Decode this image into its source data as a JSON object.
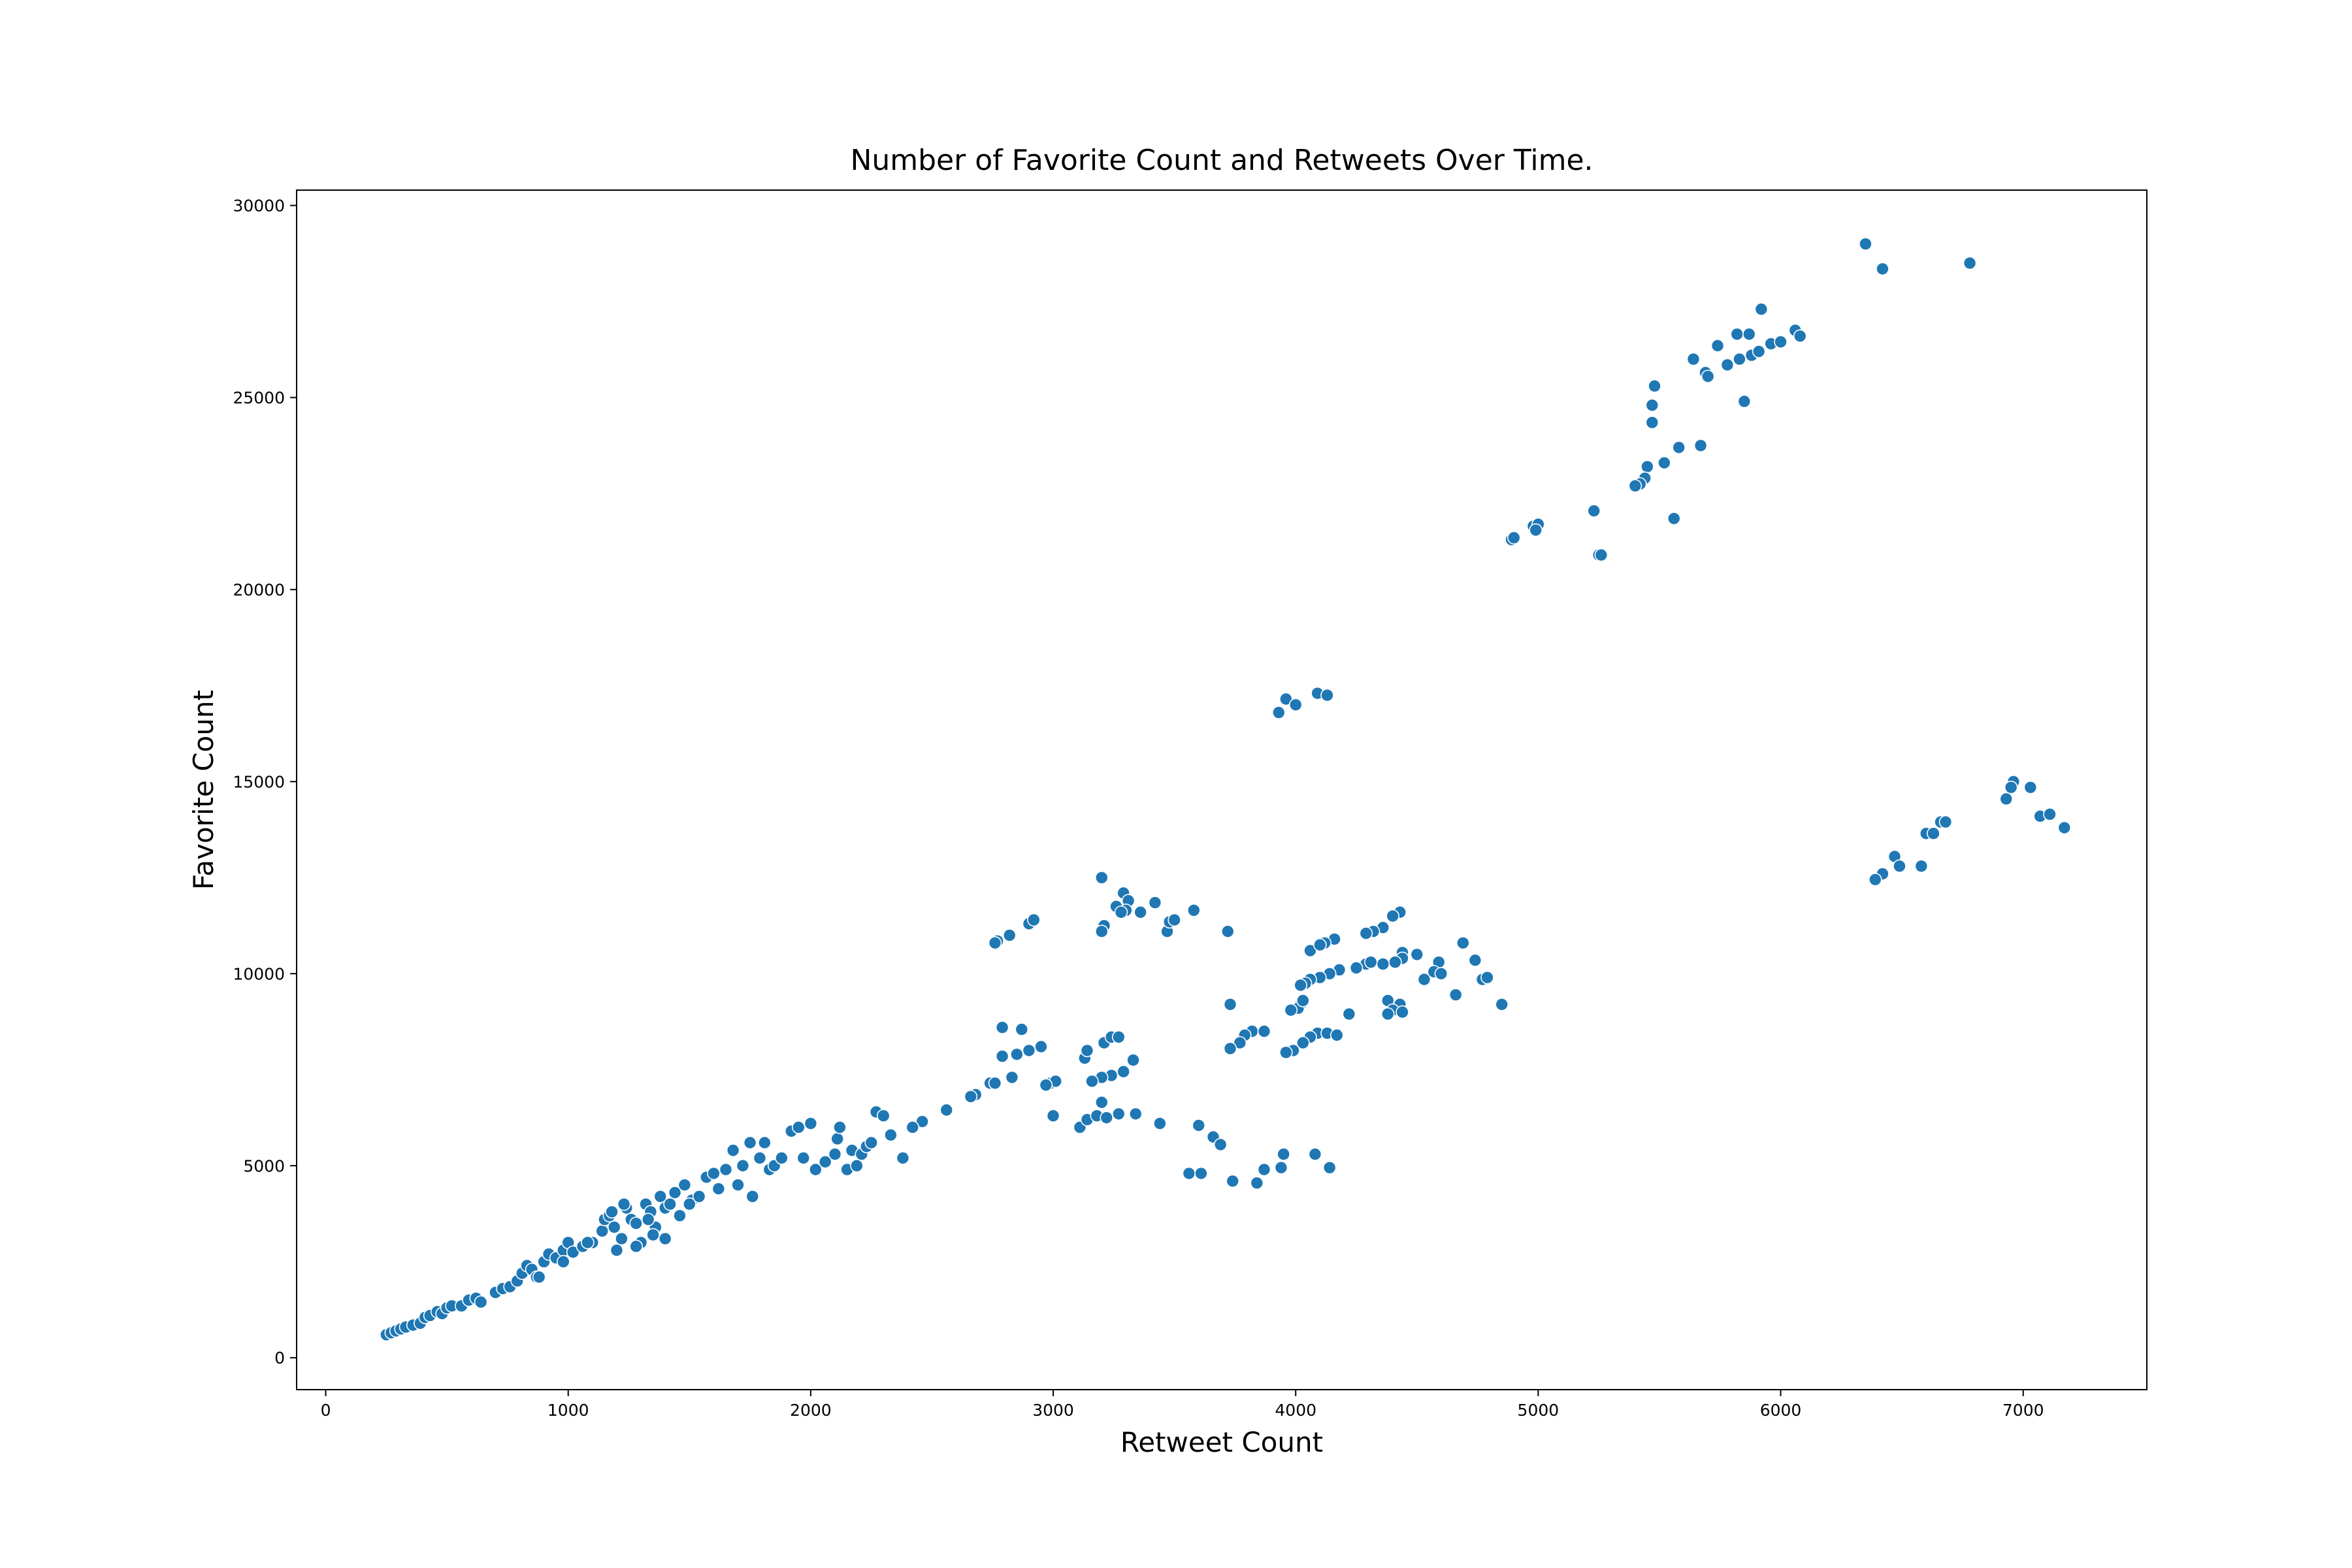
{
  "chart_data": {
    "type": "scatter",
    "title": "Number of Favorite Count and Retweets Over Time.",
    "xlabel": "Retweet Count",
    "ylabel": "Favorite Count",
    "color": "#1f77b4",
    "xlim": [
      -120,
      7510
    ],
    "ylim": [
      -830,
      30400
    ],
    "xticks": [
      0,
      1000,
      2000,
      3000,
      4000,
      5000,
      6000,
      7000
    ],
    "yticks": [
      0,
      5000,
      10000,
      15000,
      20000,
      25000,
      30000
    ],
    "x": [
      6350,
      6420,
      6780,
      5920,
      5820,
      5870,
      5960,
      6000,
      6060,
      6080,
      5640,
      5740,
      5690,
      5700,
      5780,
      5830,
      5880,
      5910,
      5480,
      5470,
      5470,
      5850,
      5580,
      5670,
      5520,
      5450,
      5440,
      5420,
      5400,
      5560,
      5230,
      5250,
      5260,
      4890,
      4900,
      4980,
      5000,
      4990,
      3930,
      3960,
      4000,
      4090,
      4130,
      6960,
      6950,
      7030,
      6930,
      7070,
      7110,
      7170,
      6660,
      6680,
      6600,
      6630,
      6470,
      6490,
      6420,
      6390,
      6580,
      3200,
      3290,
      3310,
      3260,
      3300,
      3280,
      3210,
      3200,
      3360,
      3420,
      3470,
      3480,
      3500,
      3580,
      3720,
      2900,
      2920,
      2820,
      2770,
      2760,
      4430,
      4400,
      4360,
      4320,
      4290,
      4160,
      4120,
      4060,
      4100,
      4690,
      4740,
      4590,
      4500,
      4440,
      4440,
      4410,
      4360,
      4290,
      4310,
      4250,
      4180,
      4140,
      4100,
      4060,
      4040,
      4020,
      4570,
      4600,
      4530,
      4770,
      4790,
      4660,
      4850,
      4020,
      4010,
      3980,
      4030,
      4380,
      4430,
      4400,
      4380,
      4440,
      4220,
      3730,
      3820,
      3790,
      3870,
      3770,
      3730,
      4090,
      4130,
      4170,
      4060,
      4030,
      3990,
      3960,
      2790,
      2870,
      2790,
      2830,
      2850,
      2900,
      2950,
      3130,
      3140,
      3210,
      3240,
      3270,
      3290,
      3330,
      3240,
      3200,
      3160,
      2990,
      3010,
      2970,
      2740,
      2760,
      2680,
      2660,
      2560,
      2460,
      2420,
      3000,
      3110,
      3140,
      3180,
      3220,
      3200,
      3270,
      3340,
      3440,
      3600,
      3660,
      3690,
      3560,
      3610,
      3740,
      3840,
      3870,
      3940,
      3950,
      4080,
      4140,
      250,
      270,
      290,
      310,
      330,
      360,
      390,
      410,
      430,
      460,
      480,
      500,
      520,
      560,
      590,
      620,
      640,
      700,
      730,
      760,
      790,
      810,
      830,
      850,
      870,
      900,
      920,
      950,
      980,
      1000,
      1020,
      1060,
      1100,
      1140,
      1150,
      1170,
      1190,
      1200,
      1220,
      1240,
      1260,
      1280,
      1300,
      1320,
      1340,
      1360,
      1380,
      1400,
      1420,
      1440,
      1460,
      1480,
      1510,
      1540,
      1570,
      1600,
      1620,
      1650,
      1680,
      1700,
      1720,
      1750,
      1760,
      1790,
      1810,
      1830,
      1850,
      1880,
      1920,
      1950,
      1970,
      2000,
      2020,
      2060,
      2100,
      2110,
      2120,
      2150,
      2170,
      2190,
      2210,
      2230,
      2250,
      2270,
      2300,
      2330,
      2380,
      1400,
      1280,
      1080,
      980,
      880,
      1500,
      1350,
      1180,
      1230,
      1330
    ],
    "values": [
      29000,
      28350,
      28500,
      27300,
      26650,
      26650,
      26400,
      26450,
      26750,
      26600,
      26000,
      26350,
      25650,
      25550,
      25850,
      26000,
      26100,
      26200,
      25300,
      24800,
      24350,
      24900,
      23700,
      23750,
      23300,
      23200,
      22900,
      22750,
      22700,
      21850,
      22050,
      20900,
      20900,
      21300,
      21350,
      21650,
      21700,
      21550,
      16800,
      17150,
      17000,
      17300,
      17250,
      15000,
      14850,
      14850,
      14550,
      14100,
      14150,
      13800,
      13950,
      13950,
      13650,
      13650,
      13050,
      12800,
      12600,
      12450,
      12800,
      12500,
      12100,
      11900,
      11750,
      11650,
      11600,
      11250,
      11100,
      11600,
      11850,
      11100,
      11350,
      11400,
      11650,
      11100,
      11300,
      11400,
      11000,
      10850,
      10800,
      11600,
      11500,
      11200,
      11100,
      11050,
      10900,
      10800,
      10600,
      10750,
      10800,
      10350,
      10300,
      10500,
      10550,
      10400,
      10300,
      10250,
      10250,
      10300,
      10150,
      10100,
      10000,
      9900,
      9850,
      9750,
      9700,
      10050,
      10000,
      9850,
      9850,
      9900,
      9450,
      9200,
      9200,
      9100,
      9050,
      9300,
      9300,
      9200,
      9050,
      8950,
      9000,
      8950,
      9200,
      8500,
      8400,
      8500,
      8200,
      8050,
      8450,
      8450,
      8400,
      8350,
      8200,
      8000,
      7950,
      8600,
      8550,
      7850,
      7300,
      7900,
      8000,
      8100,
      7800,
      8000,
      8200,
      8350,
      8350,
      7450,
      7750,
      7350,
      7300,
      7200,
      7150,
      7200,
      7100,
      7150,
      7150,
      6850,
      6800,
      6450,
      6150,
      6000,
      6300,
      6000,
      6200,
      6300,
      6250,
      6650,
      6350,
      6350,
      6100,
      6050,
      5750,
      5550,
      4800,
      4800,
      4600,
      4550,
      4900,
      4950,
      5300,
      5300,
      4950,
      600,
      650,
      700,
      750,
      800,
      850,
      900,
      1050,
      1100,
      1200,
      1150,
      1300,
      1350,
      1350,
      1500,
      1550,
      1450,
      1700,
      1800,
      1850,
      2000,
      2200,
      2400,
      2300,
      2100,
      2500,
      2700,
      2600,
      2800,
      3000,
      2750,
      2900,
      3000,
      3300,
      3600,
      3700,
      3400,
      2800,
      3100,
      3900,
      3600,
      3500,
      3000,
      4000,
      3800,
      3400,
      4200,
      3900,
      4000,
      4300,
      3700,
      4500,
      4100,
      4200,
      4700,
      4800,
      4400,
      4900,
      5400,
      4500,
      5000,
      5600,
      4200,
      5200,
      5600,
      4900,
      5000,
      5200,
      5900,
      6000,
      5200,
      6100,
      4900,
      5100,
      5300,
      5700,
      6000,
      4900,
      5400,
      5000,
      5300,
      5500,
      5600,
      6400,
      6300,
      5800,
      5200,
      3100,
      2900,
      3000,
      2500,
      2100,
      4000,
      3200,
      3800,
      4000,
      3600
    ]
  }
}
